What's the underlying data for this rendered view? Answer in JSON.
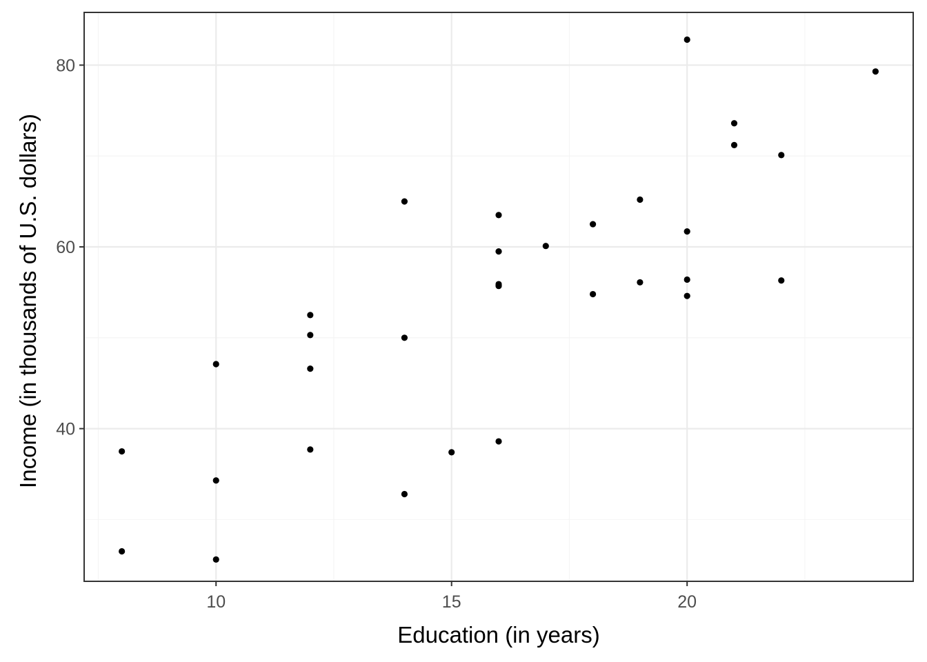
{
  "chart_data": {
    "type": "scatter",
    "title": "",
    "xlabel": "Education (in years)",
    "ylabel": "Income (in thousands of U.S. dollars)",
    "xlim": [
      7.2,
      24.8
    ],
    "ylim": [
      23.2,
      85.8
    ],
    "x_ticks": [
      10,
      15,
      20
    ],
    "x_tick_labels": [
      "10",
      "15",
      "20"
    ],
    "y_ticks": [
      40,
      60,
      80
    ],
    "y_tick_labels": [
      "40",
      "60",
      "80"
    ],
    "grid": true,
    "legend": "none",
    "point_color": "#000000",
    "points": [
      {
        "x": 8,
        "y": 37.5
      },
      {
        "x": 8,
        "y": 26.5
      },
      {
        "x": 10,
        "y": 47.1
      },
      {
        "x": 10,
        "y": 34.3
      },
      {
        "x": 10,
        "y": 25.6
      },
      {
        "x": 12,
        "y": 52.5
      },
      {
        "x": 12,
        "y": 50.3
      },
      {
        "x": 12,
        "y": 46.6
      },
      {
        "x": 12,
        "y": 37.7
      },
      {
        "x": 14,
        "y": 65.0
      },
      {
        "x": 14,
        "y": 50.0
      },
      {
        "x": 14,
        "y": 32.8
      },
      {
        "x": 15,
        "y": 37.4
      },
      {
        "x": 16,
        "y": 63.5
      },
      {
        "x": 16,
        "y": 59.5
      },
      {
        "x": 16,
        "y": 55.9
      },
      {
        "x": 16,
        "y": 55.7
      },
      {
        "x": 16,
        "y": 38.6
      },
      {
        "x": 17,
        "y": 60.1
      },
      {
        "x": 18,
        "y": 62.5
      },
      {
        "x": 18,
        "y": 54.8
      },
      {
        "x": 19,
        "y": 65.2
      },
      {
        "x": 19,
        "y": 56.1
      },
      {
        "x": 20,
        "y": 82.8
      },
      {
        "x": 20,
        "y": 61.7
      },
      {
        "x": 20,
        "y": 56.4
      },
      {
        "x": 20,
        "y": 54.6
      },
      {
        "x": 21,
        "y": 73.6
      },
      {
        "x": 21,
        "y": 71.2
      },
      {
        "x": 22,
        "y": 70.1
      },
      {
        "x": 22,
        "y": 56.3
      },
      {
        "x": 24,
        "y": 79.3
      }
    ]
  }
}
